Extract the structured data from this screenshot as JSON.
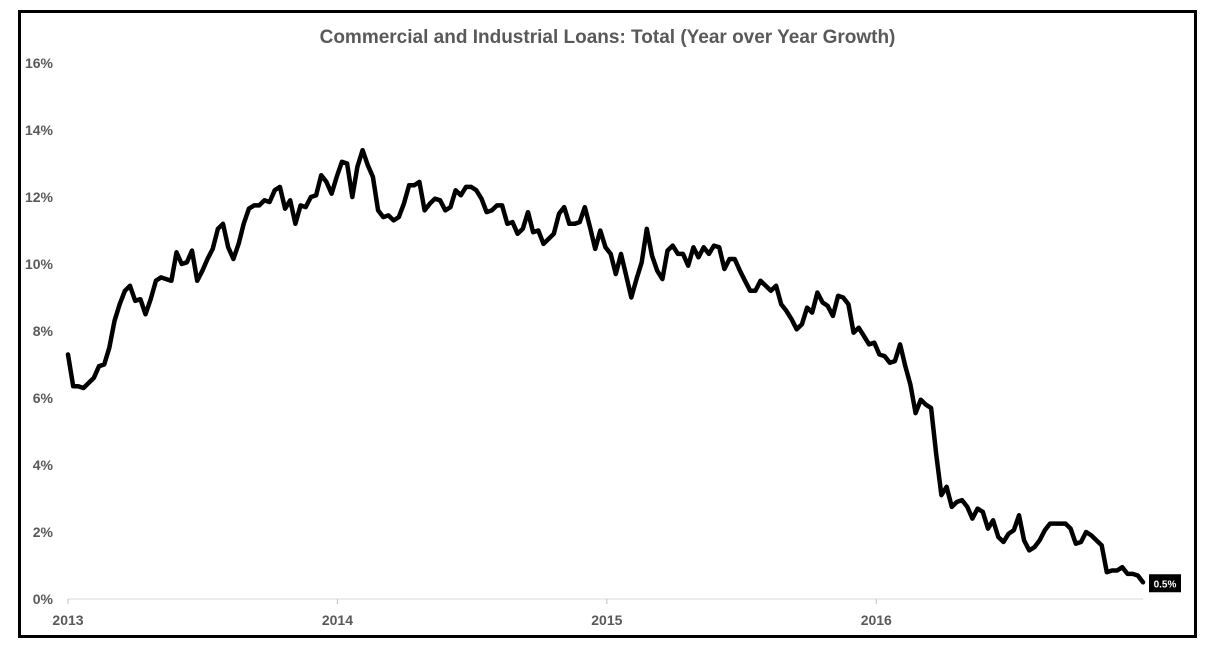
{
  "chart_data": {
    "type": "line",
    "title": "Commercial and Industrial Loans: Total (Year over Year Growth)",
    "xlabel": "",
    "ylabel": "",
    "xlim": [
      2013.0,
      2016.99
    ],
    "ylim": [
      0,
      16
    ],
    "x_ticks": [
      2013,
      2014,
      2015,
      2016
    ],
    "x_tick_labels": [
      "2013",
      "2014",
      "2015",
      "2016"
    ],
    "y_ticks": [
      0,
      2,
      4,
      6,
      8,
      10,
      12,
      14,
      16
    ],
    "y_tick_labels": [
      "0%",
      "2%",
      "4%",
      "6%",
      "8%",
      "10%",
      "12%",
      "14%",
      "16%"
    ],
    "grid": false,
    "legend": "none",
    "line_color": "#000000",
    "end_label": "0.5%",
    "series": [
      {
        "values": [
          7.3,
          6.35,
          6.35,
          6.3,
          6.45,
          6.6,
          6.95,
          7.0,
          7.5,
          8.3,
          8.8,
          9.2,
          9.35,
          8.9,
          8.95,
          8.5,
          8.95,
          9.5,
          9.6,
          9.55,
          9.5,
          10.35,
          10.0,
          10.05,
          10.4,
          9.5,
          9.8,
          10.15,
          10.45,
          11.05,
          11.2,
          10.5,
          10.15,
          10.6,
          11.2,
          11.65,
          11.75,
          11.75,
          11.9,
          11.85,
          12.2,
          12.3,
          11.65,
          11.9,
          11.2,
          11.75,
          11.7,
          12.0,
          12.05,
          12.65,
          12.45,
          12.1,
          12.6,
          13.05,
          13.0,
          12.0,
          12.9,
          13.4,
          12.95,
          12.6,
          11.6,
          11.4,
          11.45,
          11.3,
          11.4,
          11.8,
          12.35,
          12.35,
          12.45,
          11.6,
          11.8,
          11.95,
          11.9,
          11.6,
          11.7,
          12.2,
          12.05,
          12.3,
          12.3,
          12.2,
          11.95,
          11.55,
          11.6,
          11.75,
          11.75,
          11.2,
          11.25,
          10.9,
          11.05,
          11.55,
          10.95,
          11.0,
          10.6,
          10.75,
          10.9,
          11.5,
          11.7,
          11.2,
          11.2,
          11.25,
          11.7,
          11.1,
          10.45,
          11.0,
          10.5,
          10.3,
          9.7,
          10.3,
          9.65,
          9.0,
          9.55,
          10.05,
          11.05,
          10.25,
          9.8,
          9.55,
          10.4,
          10.55,
          10.3,
          10.3,
          9.95,
          10.5,
          10.2,
          10.5,
          10.3,
          10.55,
          10.5,
          9.85,
          10.15,
          10.15,
          9.8,
          9.5,
          9.2,
          9.2,
          9.5,
          9.35,
          9.2,
          9.35,
          8.8,
          8.6,
          8.35,
          8.05,
          8.2,
          8.7,
          8.55,
          9.15,
          8.85,
          8.75,
          8.45,
          9.05,
          9.0,
          8.8,
          7.95,
          8.1,
          7.85,
          7.6,
          7.65,
          7.3,
          7.25,
          7.05,
          7.1,
          7.6,
          6.95,
          6.4,
          5.55,
          5.95,
          5.8,
          5.7,
          4.3,
          3.1,
          3.35,
          2.75,
          2.9,
          2.95,
          2.75,
          2.4,
          2.7,
          2.6,
          2.1,
          2.35,
          1.85,
          1.7,
          1.95,
          2.05,
          2.5,
          1.75,
          1.45,
          1.55,
          1.75,
          2.05,
          2.25,
          2.25,
          2.25,
          2.25,
          2.1,
          1.65,
          1.7,
          2.0,
          1.9,
          1.75,
          1.6,
          0.8,
          0.85,
          0.85,
          0.95,
          0.75,
          0.75,
          0.7,
          0.5
        ]
      }
    ]
  }
}
